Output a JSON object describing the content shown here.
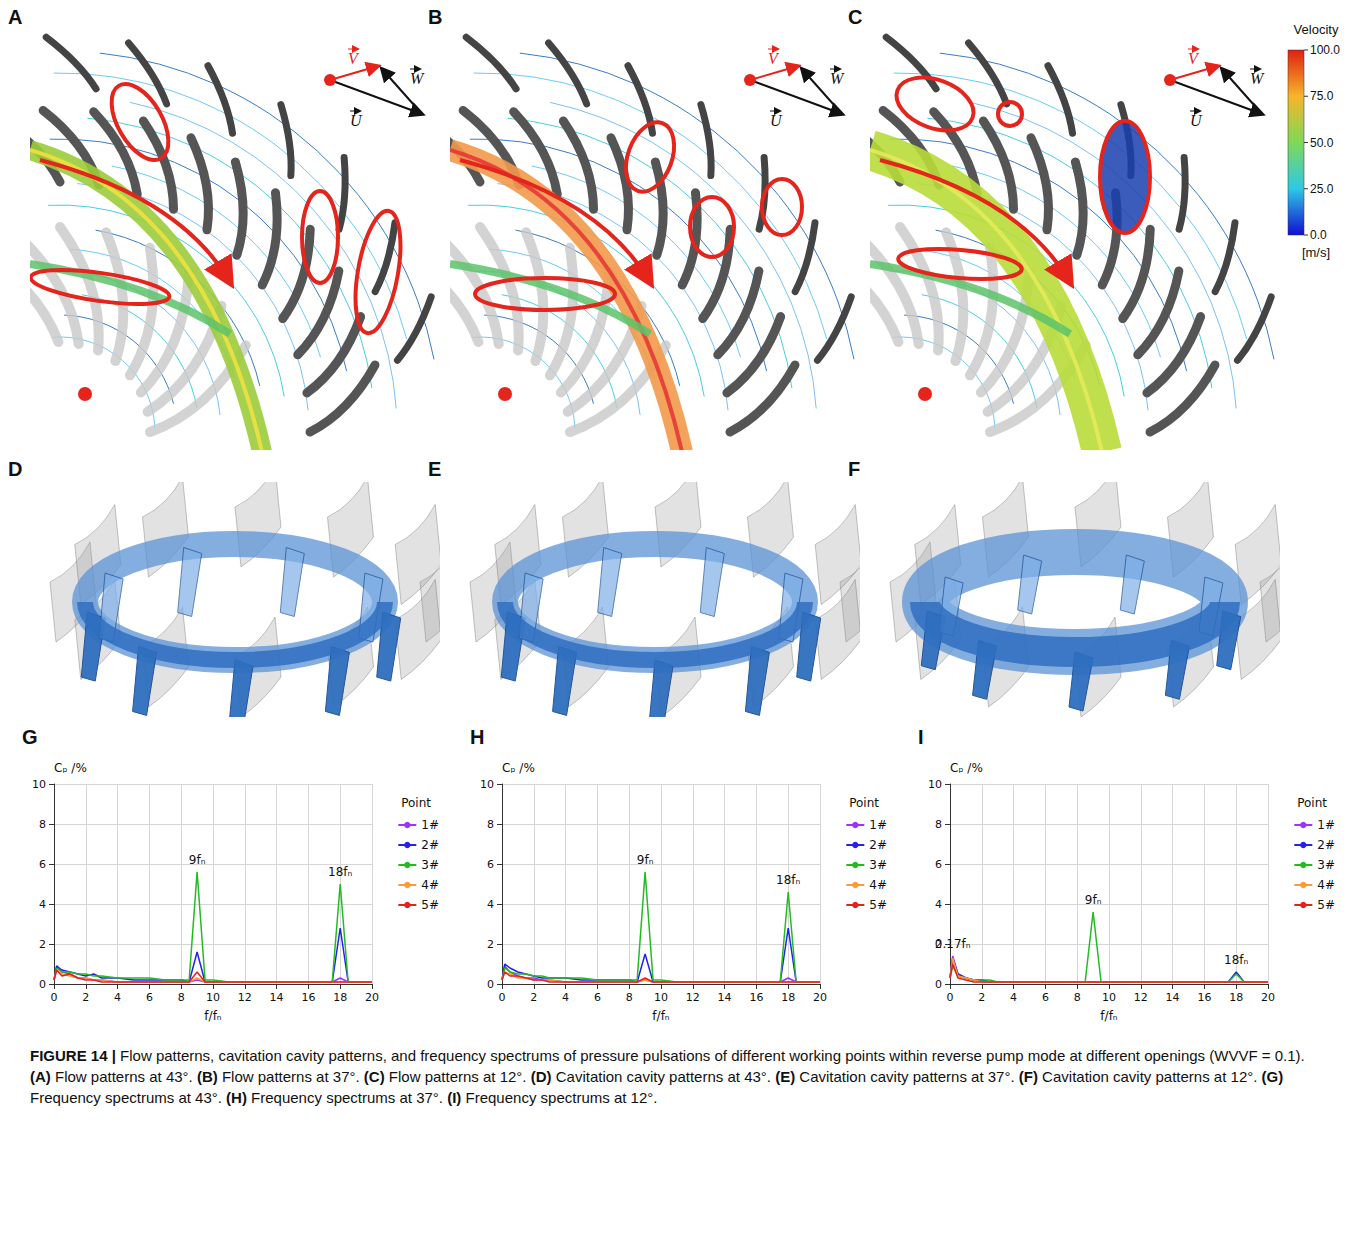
{
  "caption": {
    "label": "FIGURE 14 |",
    "lead": "Flow patterns, cavitation cavity patterns, and frequency spectrums of pressure pulsations of different working points within reverse pump mode at different openings (WVVF = 0.1).",
    "items": [
      {
        "tag": "(A)",
        "text": "Flow patterns at 43°."
      },
      {
        "tag": "(B)",
        "text": "Flow patterns at 37°."
      },
      {
        "tag": "(C)",
        "text": "Flow patterns at 12°."
      },
      {
        "tag": "(D)",
        "text": "Cavitation cavity patterns at 43°."
      },
      {
        "tag": "(E)",
        "text": "Cavitation cavity patterns at 37°."
      },
      {
        "tag": "(F)",
        "text": "Cavitation cavity patterns at 12°."
      },
      {
        "tag": "(G)",
        "text": "Frequency spectrums at 43°."
      },
      {
        "tag": "(H)",
        "text": "Frequency spectrums at 37°."
      },
      {
        "tag": "(I)",
        "text": "Frequency spectrums at 12°."
      }
    ]
  },
  "flow_panels": [
    {
      "letter": "A"
    },
    {
      "letter": "B"
    },
    {
      "letter": "C"
    }
  ],
  "vector_labels": {
    "V": "V",
    "W": "W",
    "U": "U"
  },
  "colorbar": {
    "title": "Velocity",
    "unit": "[m/s]",
    "range": [
      0,
      100
    ],
    "ticks": [
      {
        "value": 0,
        "label": "0.0"
      },
      {
        "value": 25,
        "label": "25.0"
      },
      {
        "value": 50,
        "label": "50.0"
      },
      {
        "value": 75,
        "label": "75.0"
      },
      {
        "value": 100,
        "label": "100.0"
      }
    ]
  },
  "cavity_panels": [
    {
      "letter": "D"
    },
    {
      "letter": "E"
    },
    {
      "letter": "F"
    }
  ],
  "chart_data": [
    {
      "type": "line",
      "letter": "G",
      "xlabel": "f/fₙ",
      "ylabel": "Cₚ /%",
      "legend_title": "Point",
      "x": [
        0,
        0.17,
        0.5,
        1,
        1.5,
        2,
        2.5,
        3,
        4,
        5,
        6,
        7,
        8,
        8.5,
        9,
        9.5,
        10,
        11,
        12,
        13,
        14,
        15,
        16,
        17,
        17.5,
        18,
        18.5,
        19,
        20
      ],
      "xlim": [
        0,
        20
      ],
      "xticks": [
        0,
        2,
        4,
        6,
        8,
        10,
        12,
        14,
        16,
        18,
        20
      ],
      "ylim": [
        0,
        10
      ],
      "yticks": [
        0,
        2,
        4,
        6,
        8,
        10
      ],
      "grid": true,
      "legend": "right",
      "series": [
        {
          "name": "1#",
          "color": "#9933ff",
          "values": [
            0.2,
            0.9,
            0.6,
            0.5,
            0.3,
            0.3,
            0.2,
            0.2,
            0.1,
            0.1,
            0.1,
            0.1,
            0.1,
            0.1,
            0.2,
            0.1,
            0.1,
            0.1,
            0.1,
            0.1,
            0.1,
            0.1,
            0.1,
            0.1,
            0.1,
            0.3,
            0.1,
            0.1,
            0.1
          ]
        },
        {
          "name": "2#",
          "color": "#2222ee",
          "values": [
            0.2,
            0.9,
            0.7,
            0.6,
            0.5,
            0.4,
            0.5,
            0.3,
            0.3,
            0.2,
            0.2,
            0.2,
            0.2,
            0.1,
            1.6,
            0.1,
            0.1,
            0.1,
            0.1,
            0.1,
            0.1,
            0.1,
            0.1,
            0.1,
            0.1,
            2.8,
            0.1,
            0.1,
            0.1
          ]
        },
        {
          "name": "3#",
          "color": "#22bb22",
          "values": [
            0.2,
            0.8,
            0.6,
            0.6,
            0.5,
            0.5,
            0.4,
            0.4,
            0.3,
            0.3,
            0.3,
            0.2,
            0.2,
            0.2,
            5.6,
            0.2,
            0.2,
            0.1,
            0.1,
            0.1,
            0.1,
            0.1,
            0.1,
            0.1,
            0.1,
            5.0,
            0.1,
            0.1,
            0.1
          ]
        },
        {
          "name": "4#",
          "color": "#ff9933",
          "values": [
            0.2,
            0.7,
            0.5,
            0.4,
            0.3,
            0.3,
            0.2,
            0.2,
            0.1,
            0.1,
            0.1,
            0.1,
            0.1,
            0.1,
            0.3,
            0.1,
            0.1,
            0.1,
            0.1,
            0.1,
            0.1,
            0.1,
            0.1,
            0.1,
            0.1,
            0.1,
            0.1,
            0.1,
            0.1
          ]
        },
        {
          "name": "5#",
          "color": "#e62020",
          "values": [
            0.2,
            0.7,
            0.4,
            0.5,
            0.3,
            0.2,
            0.2,
            0.1,
            0.1,
            0.1,
            0.1,
            0.1,
            0.1,
            0.1,
            0.6,
            0.1,
            0.1,
            0.1,
            0.1,
            0.1,
            0.1,
            0.1,
            0.1,
            0.1,
            0.1,
            0.1,
            0.1,
            0.1,
            0.1
          ]
        }
      ],
      "annotations": [
        {
          "text": "9fₙ",
          "x": 9,
          "series": "3#"
        },
        {
          "text": "18fₙ",
          "x": 18,
          "series": "3#"
        }
      ]
    },
    {
      "type": "line",
      "letter": "H",
      "xlabel": "f/fₙ",
      "ylabel": "Cₚ /%",
      "legend_title": "Point",
      "x": [
        0,
        0.17,
        0.5,
        1,
        1.5,
        2,
        2.5,
        3,
        4,
        5,
        6,
        7,
        8,
        8.5,
        9,
        9.5,
        10,
        11,
        12,
        13,
        14,
        15,
        16,
        17,
        17.5,
        18,
        18.5,
        19,
        20
      ],
      "xlim": [
        0,
        20
      ],
      "xticks": [
        0,
        2,
        4,
        6,
        8,
        10,
        12,
        14,
        16,
        18,
        20
      ],
      "ylim": [
        0,
        10
      ],
      "yticks": [
        0,
        2,
        4,
        6,
        8,
        10
      ],
      "grid": true,
      "legend": "right",
      "series": [
        {
          "name": "1#",
          "color": "#9933ff",
          "values": [
            0.2,
            0.9,
            0.6,
            0.4,
            0.3,
            0.3,
            0.2,
            0.2,
            0.1,
            0.1,
            0.1,
            0.1,
            0.1,
            0.1,
            0.2,
            0.1,
            0.1,
            0.1,
            0.1,
            0.1,
            0.1,
            0.1,
            0.1,
            0.1,
            0.1,
            0.3,
            0.1,
            0.1,
            0.1
          ]
        },
        {
          "name": "2#",
          "color": "#2222ee",
          "values": [
            0.2,
            1.0,
            0.8,
            0.6,
            0.5,
            0.4,
            0.3,
            0.3,
            0.3,
            0.2,
            0.2,
            0.2,
            0.2,
            0.1,
            1.5,
            0.1,
            0.1,
            0.1,
            0.1,
            0.1,
            0.1,
            0.1,
            0.1,
            0.1,
            0.1,
            2.8,
            0.1,
            0.1,
            0.1
          ]
        },
        {
          "name": "3#",
          "color": "#22bb22",
          "values": [
            0.2,
            0.8,
            0.6,
            0.5,
            0.5,
            0.4,
            0.4,
            0.3,
            0.3,
            0.3,
            0.2,
            0.2,
            0.2,
            0.2,
            5.6,
            0.2,
            0.2,
            0.1,
            0.1,
            0.1,
            0.1,
            0.1,
            0.1,
            0.1,
            0.1,
            4.6,
            0.1,
            0.1,
            0.1
          ]
        },
        {
          "name": "4#",
          "color": "#ff9933",
          "values": [
            0.2,
            0.6,
            0.5,
            0.3,
            0.3,
            0.2,
            0.2,
            0.2,
            0.1,
            0.1,
            0.1,
            0.1,
            0.1,
            0.1,
            0.2,
            0.1,
            0.1,
            0.1,
            0.1,
            0.1,
            0.1,
            0.1,
            0.1,
            0.1,
            0.1,
            0.1,
            0.1,
            0.1,
            0.1
          ]
        },
        {
          "name": "5#",
          "color": "#e62020",
          "values": [
            0.2,
            0.6,
            0.4,
            0.4,
            0.3,
            0.2,
            0.2,
            0.1,
            0.1,
            0.1,
            0.1,
            0.1,
            0.1,
            0.1,
            0.3,
            0.1,
            0.1,
            0.1,
            0.1,
            0.1,
            0.1,
            0.1,
            0.1,
            0.1,
            0.1,
            0.1,
            0.1,
            0.1,
            0.1
          ]
        }
      ],
      "annotations": [
        {
          "text": "9fₙ",
          "x": 9,
          "series": "3#"
        },
        {
          "text": "18fₙ",
          "x": 18,
          "series": "3#"
        }
      ]
    },
    {
      "type": "line",
      "letter": "I",
      "xlabel": "f/fₙ",
      "ylabel": "Cₚ /%",
      "legend_title": "Point",
      "x": [
        0,
        0.17,
        0.5,
        1,
        1.5,
        2,
        2.5,
        3,
        4,
        5,
        6,
        7,
        8,
        8.5,
        9,
        9.5,
        10,
        11,
        12,
        13,
        14,
        15,
        16,
        17,
        17.5,
        18,
        18.5,
        19,
        20
      ],
      "xlim": [
        0,
        20
      ],
      "xticks": [
        0,
        2,
        4,
        6,
        8,
        10,
        12,
        14,
        16,
        18,
        20
      ],
      "ylim": [
        0,
        10
      ],
      "yticks": [
        0,
        2,
        4,
        6,
        8,
        10
      ],
      "grid": true,
      "legend": "right",
      "series": [
        {
          "name": "1#",
          "color": "#9933ff",
          "values": [
            0.3,
            1.4,
            0.5,
            0.3,
            0.2,
            0.2,
            0.1,
            0.1,
            0.1,
            0.1,
            0.1,
            0.1,
            0.1,
            0.1,
            0.1,
            0.1,
            0.1,
            0.1,
            0.1,
            0.1,
            0.1,
            0.1,
            0.1,
            0.1,
            0.1,
            0.1,
            0.1,
            0.1,
            0.1
          ]
        },
        {
          "name": "2#",
          "color": "#2222ee",
          "values": [
            0.3,
            1.3,
            0.5,
            0.3,
            0.2,
            0.2,
            0.1,
            0.1,
            0.1,
            0.1,
            0.1,
            0.1,
            0.1,
            0.1,
            0.1,
            0.1,
            0.1,
            0.1,
            0.1,
            0.1,
            0.1,
            0.1,
            0.1,
            0.1,
            0.1,
            0.6,
            0.1,
            0.1,
            0.1
          ]
        },
        {
          "name": "3#",
          "color": "#22bb22",
          "values": [
            0.3,
            0.9,
            0.4,
            0.3,
            0.2,
            0.2,
            0.2,
            0.1,
            0.1,
            0.1,
            0.1,
            0.1,
            0.1,
            0.1,
            3.6,
            0.1,
            0.1,
            0.1,
            0.1,
            0.1,
            0.1,
            0.1,
            0.1,
            0.1,
            0.1,
            0.5,
            0.1,
            0.1,
            0.1
          ]
        },
        {
          "name": "4#",
          "color": "#ff9933",
          "values": [
            0.3,
            1.3,
            0.4,
            0.3,
            0.2,
            0.1,
            0.1,
            0.1,
            0.1,
            0.1,
            0.1,
            0.1,
            0.1,
            0.1,
            0.1,
            0.1,
            0.1,
            0.1,
            0.1,
            0.1,
            0.1,
            0.1,
            0.1,
            0.1,
            0.1,
            0.1,
            0.1,
            0.1,
            0.1
          ]
        },
        {
          "name": "5#",
          "color": "#e62020",
          "values": [
            0.3,
            1.0,
            0.3,
            0.2,
            0.1,
            0.1,
            0.1,
            0.1,
            0.1,
            0.1,
            0.1,
            0.1,
            0.1,
            0.1,
            0.1,
            0.1,
            0.1,
            0.1,
            0.1,
            0.1,
            0.1,
            0.1,
            0.1,
            0.1,
            0.1,
            0.1,
            0.1,
            0.1,
            0.1
          ]
        }
      ],
      "annotations": [
        {
          "text": "0.17fₙ",
          "x": 0.17,
          "series": "1#"
        },
        {
          "text": "9fₙ",
          "x": 9,
          "series": "3#"
        },
        {
          "text": "18fₙ",
          "x": 18,
          "series": "2#"
        }
      ]
    }
  ]
}
